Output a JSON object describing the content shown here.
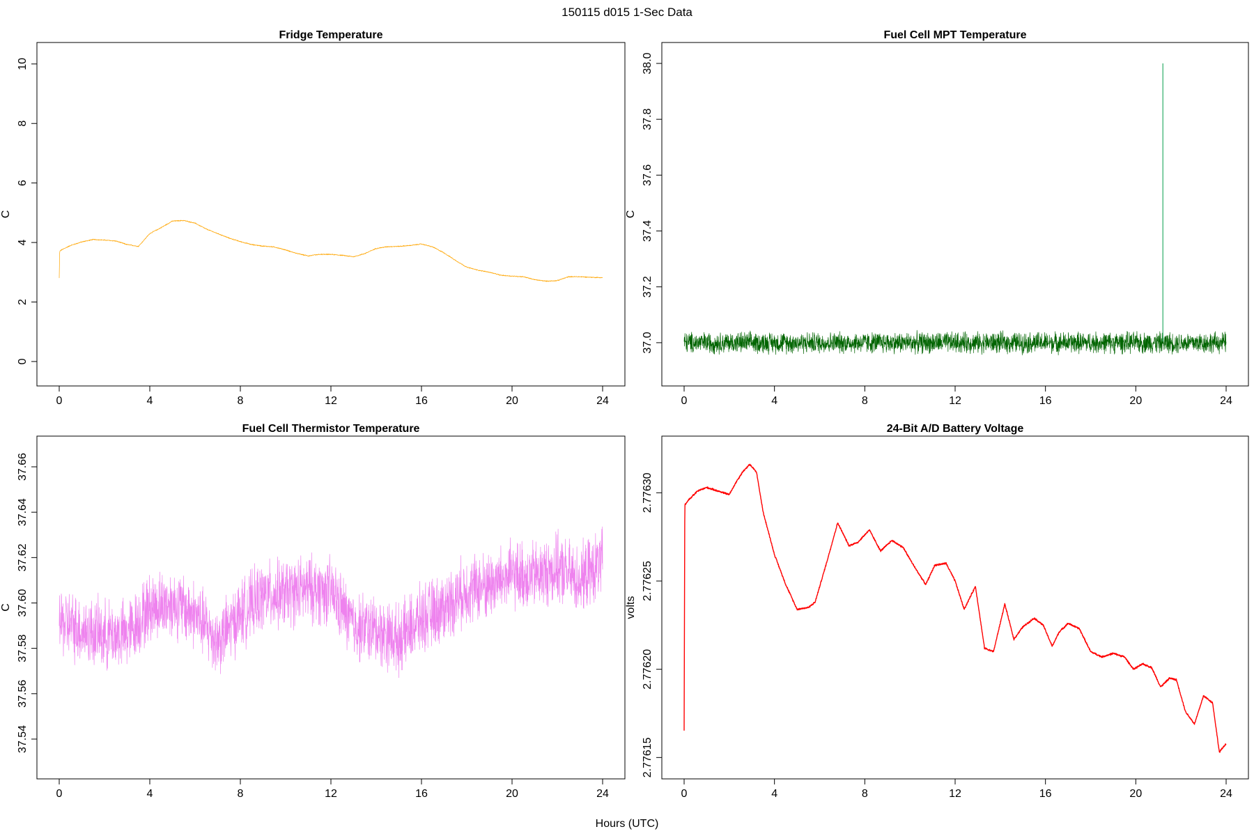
{
  "figure": {
    "title": "150115   d015   1-Sec Data",
    "xlabel": "Hours (UTC)"
  },
  "chart_data": [
    {
      "type": "line",
      "title": "Fridge Temperature",
      "xlabel": "",
      "ylabel": "C",
      "xlim": [
        0,
        24
      ],
      "ylim": [
        -0.4,
        10.3
      ],
      "xticks": [
        "0",
        "4",
        "8",
        "12",
        "16",
        "20",
        "24"
      ],
      "yticks": [
        "0",
        "2",
        "4",
        "6",
        "8",
        "10"
      ],
      "color": "#FFA500",
      "noise": 0.02,
      "series": [
        {
          "x": [
            0,
            0.02,
            0.1,
            0.5,
            1.0,
            1.5,
            2.0,
            2.5,
            3.0,
            3.5,
            4.0,
            4.5,
            5.0,
            5.5,
            6.0,
            6.5,
            7.0,
            7.5,
            8.0,
            8.5,
            9.0,
            9.5,
            10.0,
            10.5,
            11.0,
            11.5,
            12.0,
            12.5,
            13.0,
            13.5,
            14.0,
            14.5,
            15.0,
            15.5,
            16.0,
            16.5,
            17.0,
            17.5,
            18.0,
            18.5,
            19.0,
            19.5,
            20.0,
            20.5,
            21.0,
            21.5,
            22.0,
            22.5,
            23.0,
            23.5,
            24.0
          ],
          "y": [
            2.8,
            3.7,
            3.75,
            3.9,
            4.02,
            4.1,
            4.08,
            4.05,
            3.93,
            3.87,
            4.3,
            4.5,
            4.72,
            4.74,
            4.65,
            4.45,
            4.3,
            4.15,
            4.03,
            3.93,
            3.88,
            3.85,
            3.75,
            3.63,
            3.55,
            3.6,
            3.6,
            3.57,
            3.52,
            3.63,
            3.8,
            3.86,
            3.87,
            3.9,
            3.95,
            3.85,
            3.65,
            3.4,
            3.17,
            3.07,
            3.0,
            2.9,
            2.87,
            2.85,
            2.75,
            2.7,
            2.72,
            2.85,
            2.85,
            2.83,
            2.82
          ]
        }
      ]
    },
    {
      "type": "line",
      "title": "Fuel Cell MPT Temperature",
      "xlabel": "",
      "ylabel": "C",
      "xlim": [
        0,
        24
      ],
      "ylim": [
        36.89,
        38.03
      ],
      "xticks": [
        "0",
        "4",
        "8",
        "12",
        "16",
        "20",
        "24"
      ],
      "yticks": [
        "37.0",
        "37.2",
        "37.4",
        "37.6",
        "37.8",
        "38.0"
      ],
      "color": "#006400",
      "noise": 0.045,
      "spike": {
        "x": 21.2,
        "y": 38.0,
        "color": "#3CB371"
      },
      "series": [
        {
          "x": [
            0,
            4,
            8,
            12,
            16,
            20,
            24
          ],
          "y": [
            37.0,
            37.0,
            37.0,
            37.0,
            37.0,
            37.0,
            37.0
          ]
        }
      ]
    },
    {
      "type": "line",
      "title": "Fuel Cell Thermistor Temperature",
      "xlabel": "",
      "ylabel": "C",
      "xlim": [
        0,
        24
      ],
      "ylim": [
        37.528,
        37.668
      ],
      "xticks": [
        "0",
        "4",
        "8",
        "12",
        "16",
        "20",
        "24"
      ],
      "yticks": [
        "37.54",
        "37.56",
        "37.58",
        "37.60",
        "37.62",
        "37.64",
        "37.66"
      ],
      "color": "#EE82EE",
      "noise": 0.018,
      "series": [
        {
          "x": [
            0,
            1,
            2,
            3,
            4,
            5,
            6,
            7,
            8,
            9,
            10,
            11,
            12,
            13,
            14,
            15,
            16,
            17,
            18,
            19,
            20,
            21,
            22,
            23,
            24
          ],
          "y": [
            37.592,
            37.588,
            37.586,
            37.586,
            37.598,
            37.6,
            37.595,
            37.583,
            37.595,
            37.603,
            37.604,
            37.606,
            37.605,
            37.59,
            37.588,
            37.584,
            37.593,
            37.598,
            37.606,
            37.608,
            37.612,
            37.612,
            37.615,
            37.61,
            37.618
          ]
        }
      ]
    },
    {
      "type": "line",
      "title": "24-Bit A/D Battery Voltage",
      "xlabel": "",
      "ylabel": "volts",
      "xlim": [
        0,
        24
      ],
      "ylim": [
        2.776145,
        2.776325
      ],
      "xticks": [
        "0",
        "4",
        "8",
        "12",
        "16",
        "20",
        "24"
      ],
      "yticks": [
        "2.77615",
        "2.77620",
        "2.77625",
        "2.77630"
      ],
      "color": "#FF0000",
      "noise": 6e-07,
      "series": [
        {
          "x": [
            0,
            0.03,
            0.2,
            0.6,
            1.0,
            1.5,
            2.0,
            2.3,
            2.6,
            2.9,
            3.2,
            3.5,
            4.0,
            4.5,
            5.0,
            5.5,
            5.8,
            6.3,
            6.8,
            7.3,
            7.7,
            8.2,
            8.7,
            9.2,
            9.7,
            10.2,
            10.7,
            11.1,
            11.6,
            12.0,
            12.4,
            12.9,
            13.3,
            13.7,
            14.2,
            14.6,
            15.0,
            15.5,
            15.9,
            16.3,
            16.6,
            17.0,
            17.5,
            18.0,
            18.5,
            19.0,
            19.5,
            19.9,
            20.3,
            20.7,
            21.1,
            21.5,
            21.8,
            22.2,
            22.6,
            23.0,
            23.4,
            23.7,
            24.0
          ],
          "y": [
            2.776165,
            2.776293,
            2.776296,
            2.776301,
            2.776303,
            2.776301,
            2.776299,
            2.776306,
            2.776312,
            2.776316,
            2.776312,
            2.776289,
            2.776265,
            2.776248,
            2.776234,
            2.776235,
            2.776238,
            2.77626,
            2.776283,
            2.77627,
            2.776272,
            2.776279,
            2.776267,
            2.776273,
            2.776269,
            2.776258,
            2.776248,
            2.776259,
            2.77626,
            2.77625,
            2.776234,
            2.776247,
            2.776212,
            2.77621,
            2.776237,
            2.776217,
            2.776224,
            2.776229,
            2.776225,
            2.776213,
            2.776221,
            2.776226,
            2.776223,
            2.77621,
            2.776207,
            2.776209,
            2.776207,
            2.7762,
            2.776203,
            2.776201,
            2.77619,
            2.776195,
            2.776194,
            2.776176,
            2.776169,
            2.776185,
            2.776181,
            2.776153,
            2.776158
          ]
        }
      ]
    }
  ]
}
